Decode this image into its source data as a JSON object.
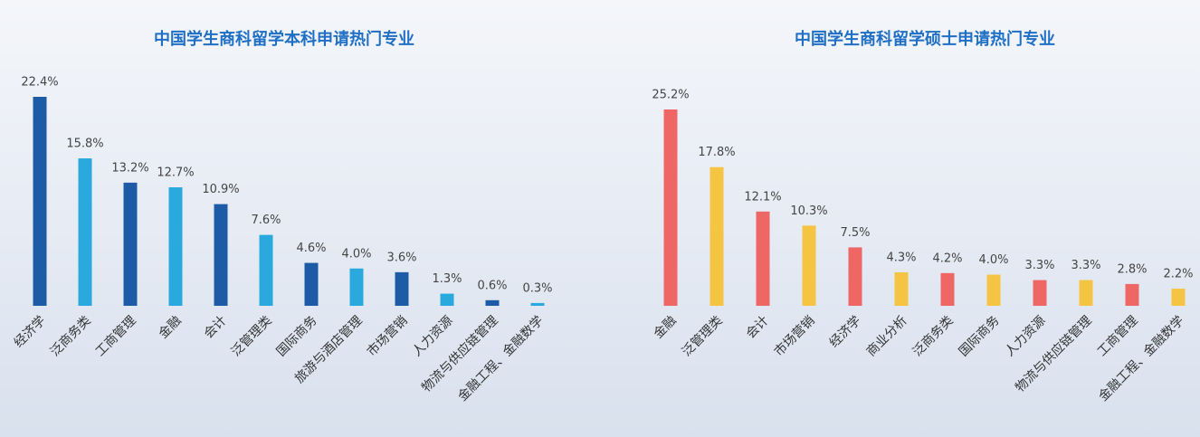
{
  "chart_data": [
    {
      "type": "bar",
      "title": "中国学生商科留学本科申请热门专业",
      "categories": [
        "经济学",
        "泛商务类",
        "工商管理",
        "金融",
        "会计",
        "泛管理类",
        "国际商务",
        "旅游与酒店管理",
        "市场营销",
        "人力资源",
        "物流与供应链管理",
        "金融工程、金融数学"
      ],
      "values": [
        22.4,
        15.8,
        13.2,
        12.7,
        10.9,
        7.6,
        4.6,
        4.0,
        3.6,
        1.3,
        0.6,
        0.3
      ],
      "value_labels": [
        "22.4%",
        "15.8%",
        "13.2%",
        "12.7%",
        "10.9%",
        "7.6%",
        "4.6%",
        "4.0%",
        "3.6%",
        "1.3%",
        "0.6%",
        "0.3%"
      ],
      "colors": [
        "#1d5ba6",
        "#2aa9df",
        "#1d5ba6",
        "#2aa9df",
        "#1d5ba6",
        "#2aa9df",
        "#1d5ba6",
        "#2aa9df",
        "#1d5ba6",
        "#2aa9df",
        "#1d5ba6",
        "#2aa9df"
      ]
    },
    {
      "type": "bar",
      "title": "中国学生商科留学硕士申请热门专业",
      "categories": [
        "金融",
        "泛管理类",
        "会计",
        "市场营销",
        "经济学",
        "商业分析",
        "泛商务类",
        "国际商务",
        "人力资源",
        "物流与供应链管理",
        "工商管理",
        "金融工程、金融数学"
      ],
      "values": [
        25.2,
        17.8,
        12.1,
        10.3,
        7.5,
        4.3,
        4.2,
        4.0,
        3.3,
        3.3,
        2.8,
        2.2
      ],
      "value_labels": [
        "25.2%",
        "17.8%",
        "12.1%",
        "10.3%",
        "7.5%",
        "4.3%",
        "4.2%",
        "4.0%",
        "3.3%",
        "3.3%",
        "2.8%",
        "2.2%"
      ],
      "colors": [
        "#ee6764",
        "#f5c443",
        "#ee6764",
        "#f5c443",
        "#ee6764",
        "#f5c443",
        "#ee6764",
        "#f5c443",
        "#ee6764",
        "#f5c443",
        "#ee6764",
        "#f5c443"
      ]
    }
  ]
}
